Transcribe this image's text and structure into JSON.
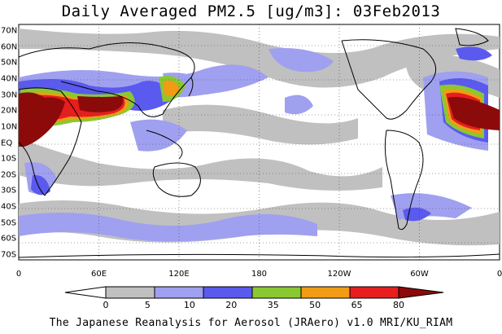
{
  "title": "Daily Averaged PM2.5 [ug/m3]: 03Feb2013",
  "credit": "The Japanese Reanalysis for Aerosol (JRAero) v1.0 MRI/KU_RIAM",
  "lat_labels": [
    "70N",
    "60N",
    "50N",
    "40N",
    "30N",
    "20N",
    "10N",
    "EQ",
    "10S",
    "20S",
    "30S",
    "40S",
    "50S",
    "60S",
    "70S"
  ],
  "lon_labels": [
    "0",
    "60E",
    "120E",
    "180",
    "120W",
    "60W",
    "0"
  ],
  "colorbar": {
    "labels": [
      "0",
      "5",
      "10",
      "20",
      "35",
      "50",
      "65",
      "80"
    ],
    "colors": [
      "#ffffff",
      "#c0c0c0",
      "#a0a0f0",
      "#5a5aee",
      "#8ac832",
      "#f09c14",
      "#e61e1e",
      "#8c0a0a"
    ]
  },
  "colors": {
    "low": "#c0c0c0",
    "medium_low": "#a0a0f0",
    "medium": "#5a5aee",
    "moderate": "#8ac832",
    "high": "#f09c14",
    "very_high": "#e61e1e",
    "extreme": "#8c0a0a"
  }
}
